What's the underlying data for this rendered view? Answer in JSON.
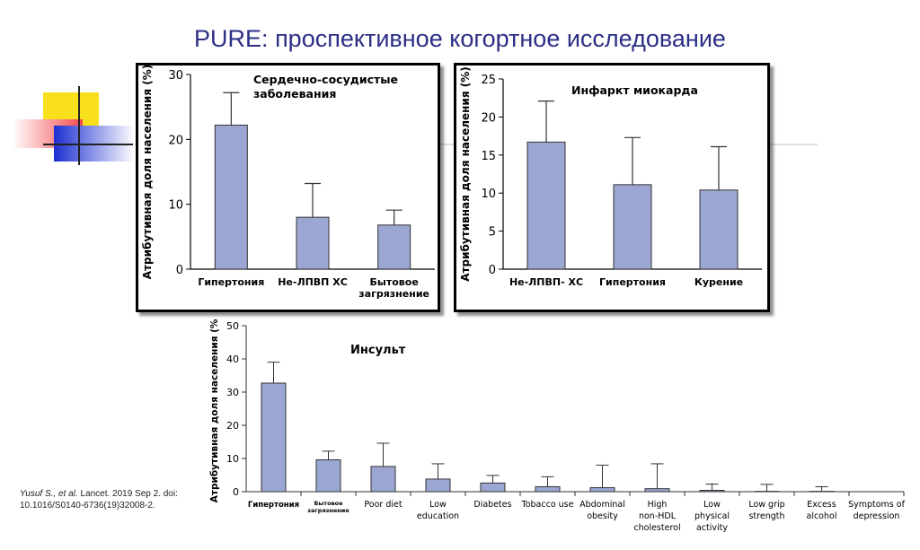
{
  "slide_title": "PURE: проспективное когортное исследование",
  "citation": {
    "authors": "Yusuf S., et al.",
    "journal": "Lancet. 2019 Sep 2. doi:",
    "doi": "10.1016/S0140-6736(19)32008-2."
  },
  "colors": {
    "bar": "#9ba7d2",
    "title": "#2b2f85"
  },
  "chart_data": [
    {
      "type": "bar",
      "title": "Сердечно-сосудистые заболевания",
      "ylabel": "Атрибутивная доля населения (%)",
      "ylim": [
        0,
        30
      ],
      "yticks": [
        0,
        10,
        20,
        30
      ],
      "categories": [
        "Гипертония",
        "Не-ЛПВП ХС",
        "Бытовое загрязнение"
      ],
      "values": [
        22.2,
        8.0,
        6.8
      ],
      "error_upper": [
        27.2,
        13.2,
        9.1
      ]
    },
    {
      "type": "bar",
      "title": "Инфаркт миокарда",
      "ylabel": "Атрибутивная доля населения (%)",
      "ylim": [
        0,
        25
      ],
      "yticks": [
        0,
        5,
        10,
        15,
        20,
        25
      ],
      "categories": [
        "Не-ЛПВП- ХС",
        "Гипертония",
        "Курение"
      ],
      "values": [
        16.7,
        11.1,
        10.4
      ],
      "error_upper": [
        22.1,
        17.3,
        16.1
      ]
    },
    {
      "type": "bar",
      "title": "Инсульт",
      "ylabel": "Атрибутивная доля населения (%)",
      "ylim": [
        0,
        50
      ],
      "yticks": [
        0,
        10,
        20,
        30,
        40,
        50
      ],
      "categories": [
        "Гипертония",
        "Бытовое загрязнение",
        "Poor diet",
        "Low education",
        "Diabetes",
        "Tobacco use",
        "Abdominal obesity",
        "High non-HDL cholesterol",
        "Low physical activity",
        "Low grip strength",
        "Excess alcohol",
        "Symptoms of depression"
      ],
      "values": [
        32.7,
        9.6,
        7.6,
        3.8,
        2.6,
        1.5,
        1.2,
        0.9,
        0.4,
        0.1,
        0.1,
        0
      ],
      "error_upper": [
        39.0,
        12.2,
        14.6,
        8.4,
        4.9,
        4.5,
        8.0,
        8.4,
        2.3,
        2.2,
        1.5,
        0
      ]
    }
  ]
}
